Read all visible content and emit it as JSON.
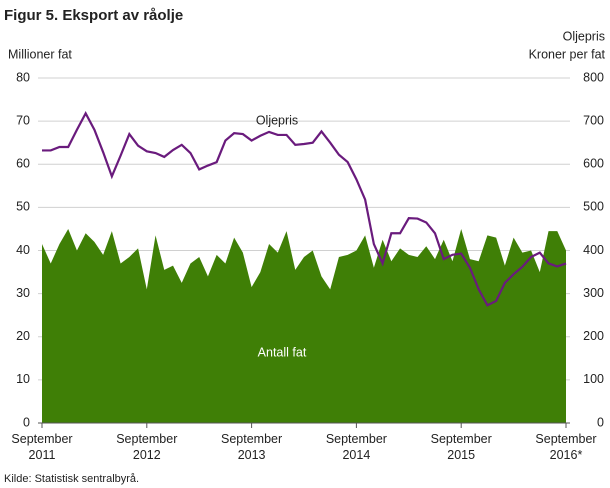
{
  "chart_data": {
    "type": "area",
    "title": "Figur 5. Eksport av råolje",
    "y_label": "Millioner fat",
    "y2_label_1": "Oljepris",
    "y2_label_2": "Kroner per fat",
    "source": "Kilde: Statistisk sentralbyrå.",
    "categories": [
      "September 2011",
      null,
      null,
      null,
      null,
      null,
      null,
      null,
      null,
      null,
      null,
      null,
      "September 2012",
      null,
      null,
      null,
      null,
      null,
      null,
      null,
      null,
      null,
      null,
      null,
      "September 2013",
      null,
      null,
      null,
      null,
      null,
      null,
      null,
      null,
      null,
      null,
      null,
      "September 2014",
      null,
      null,
      null,
      null,
      null,
      null,
      null,
      null,
      null,
      null,
      null,
      "September 2015",
      null,
      null,
      null,
      null,
      null,
      null,
      null,
      null,
      null,
      null,
      null,
      "September 2016*"
    ],
    "series": [
      {
        "name": "Antall fat",
        "type": "area",
        "color": "#3f7f06",
        "values": [
          41.5,
          37,
          41.5,
          45,
          40,
          44,
          42,
          39,
          44.5,
          37,
          38.5,
          40.5,
          31,
          43.5,
          35.5,
          36.5,
          32.5,
          37,
          38.5,
          34,
          39,
          37,
          43,
          39.5,
          31.5,
          35,
          41.5,
          39.5,
          44.5,
          35.5,
          38.5,
          40,
          34,
          31,
          38.5,
          39,
          40,
          43.5,
          36,
          42.5,
          37.5,
          40.5,
          39,
          38.5,
          41,
          38,
          42.5,
          37.5,
          45,
          38,
          37.5,
          43.5,
          43,
          36.5,
          43,
          39.5,
          40,
          35,
          44.5,
          44.5,
          40
        ]
      },
      {
        "name": "Oljepris",
        "type": "line",
        "axis": "y2",
        "color": "#6a1b7d",
        "values": [
          632,
          632,
          640,
          640,
          680,
          718,
          680,
          628,
          572,
          620,
          670,
          643,
          630,
          626,
          617,
          633,
          645,
          626,
          588,
          597,
          605,
          655,
          672,
          670,
          655,
          666,
          675,
          668,
          668,
          645,
          647,
          650,
          676,
          650,
          622,
          605,
          565,
          518,
          415,
          370,
          440,
          440,
          475,
          474,
          465,
          440,
          380,
          390,
          393,
          360,
          310,
          273,
          283,
          325,
          345,
          362,
          385,
          395,
          370,
          363,
          370
        ]
      }
    ],
    "ylim": [
      0,
      80
    ],
    "yticks": [
      0,
      10,
      20,
      30,
      40,
      50,
      60,
      70,
      80
    ],
    "y2lim": [
      0,
      800
    ],
    "y2ticks": [
      0,
      100,
      200,
      300,
      400,
      500,
      600,
      700,
      800
    ],
    "grid": true
  }
}
